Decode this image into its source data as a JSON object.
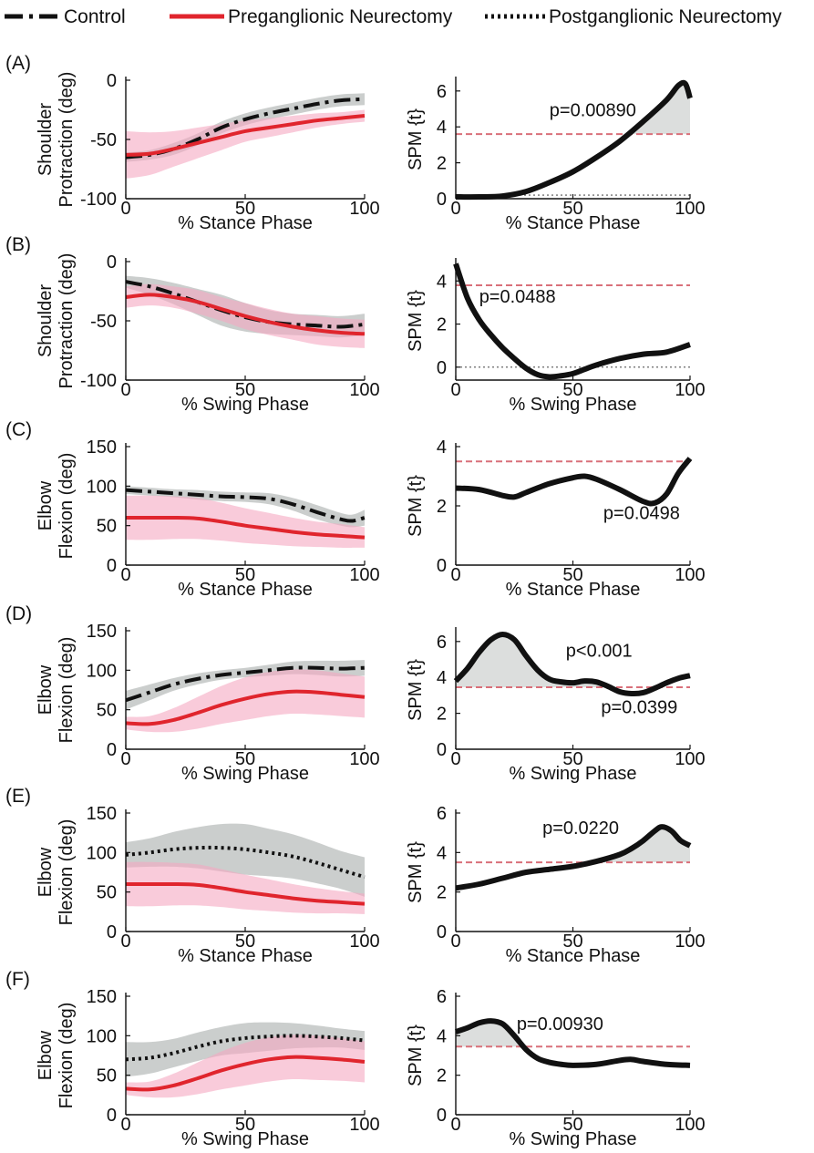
{
  "legend": [
    {
      "label": "Control",
      "style": "dashdot",
      "color": "#111111"
    },
    {
      "label": "Preganglionic Neurectomy",
      "style": "solid",
      "color": "#e0252d"
    },
    {
      "label": "Postganglionic Neurectomy",
      "style": "dotted",
      "color": "#111111"
    }
  ],
  "colors": {
    "line_dark": "#111111",
    "line_red": "#e0252d",
    "band_gray": "#b9bdbc",
    "band_pink": "#f5a9c1",
    "threshold": "#d9707a",
    "spm_fill": "#dcdedd"
  },
  "chart_data": [
    {
      "panel": "(A)",
      "type": "line",
      "side": "kinematics",
      "ylabel": [
        "Shoulder",
        "Protraction (deg)"
      ],
      "xlabel": "% Stance Phase",
      "xlim": [
        0,
        100
      ],
      "ylim": [
        -100,
        0
      ],
      "yticks": [
        0,
        -50,
        -100
      ],
      "xticks": [
        0,
        50,
        100
      ],
      "x": [
        0,
        10,
        20,
        30,
        40,
        50,
        60,
        70,
        80,
        90,
        100
      ],
      "series": [
        {
          "name": "Control",
          "style": "dashdot",
          "color": "#111111",
          "band_color": "#b9bdbc",
          "mean": [
            -65,
            -63,
            -58,
            -50,
            -40,
            -33,
            -28,
            -24,
            -20,
            -17,
            -16
          ],
          "sd": [
            4,
            4,
            5,
            5,
            5,
            5,
            5,
            5,
            5,
            5,
            5
          ]
        },
        {
          "name": "Preganglionic Neurectomy",
          "style": "solid",
          "color": "#e0252d",
          "band_color": "#f5a9c1",
          "mean": [
            -63,
            -62,
            -58,
            -53,
            -48,
            -43,
            -40,
            -37,
            -34,
            -32,
            -30
          ],
          "sd": [
            20,
            18,
            15,
            13,
            11,
            9,
            8,
            7,
            6,
            5,
            5
          ]
        }
      ]
    },
    {
      "panel": "(A)",
      "type": "line",
      "side": "spm",
      "ylabel": "SPM {t}",
      "xlabel": "% Stance Phase",
      "xlim": [
        0,
        100
      ],
      "ylim": [
        0,
        6.6
      ],
      "yticks": [
        0,
        2,
        4,
        6
      ],
      "xticks": [
        0,
        50,
        100
      ],
      "threshold": 3.6,
      "zero_line": 0.2,
      "x": [
        0,
        10,
        20,
        30,
        40,
        50,
        60,
        70,
        80,
        90,
        95,
        98,
        100
      ],
      "values": [
        0.1,
        0.1,
        0.15,
        0.4,
        0.9,
        1.5,
        2.3,
        3.2,
        4.3,
        5.5,
        6.3,
        6.4,
        5.6
      ],
      "cluster_x": [
        73,
        100
      ],
      "annotations": [
        {
          "text": "p=0.00890",
          "x": 40,
          "y": 4.6
        }
      ]
    },
    {
      "panel": "(B)",
      "type": "line",
      "side": "kinematics",
      "ylabel": [
        "Shoulder",
        "Protraction (deg)"
      ],
      "xlabel": "% Swing Phase",
      "xlim": [
        0,
        100
      ],
      "ylim": [
        -100,
        0
      ],
      "yticks": [
        0,
        -50,
        -100
      ],
      "xticks": [
        0,
        50,
        100
      ],
      "x": [
        0,
        10,
        20,
        30,
        40,
        50,
        60,
        70,
        80,
        90,
        100
      ],
      "series": [
        {
          "name": "Control",
          "style": "dashdot",
          "color": "#111111",
          "band_color": "#b9bdbc",
          "mean": [
            -17,
            -21,
            -27,
            -34,
            -41,
            -47,
            -51,
            -53,
            -54,
            -55,
            -53
          ],
          "sd": [
            5,
            7,
            9,
            11,
            13,
            12,
            10,
            9,
            9,
            9,
            9
          ]
        },
        {
          "name": "Preganglionic Neurectomy",
          "style": "solid",
          "color": "#e0252d",
          "band_color": "#f5a9c1",
          "mean": [
            -30,
            -28,
            -30,
            -34,
            -40,
            -46,
            -51,
            -55,
            -58,
            -60,
            -61
          ],
          "sd": [
            9,
            9,
            9,
            10,
            10,
            11,
            11,
            11,
            12,
            12,
            12
          ]
        }
      ]
    },
    {
      "panel": "(B)",
      "type": "line",
      "side": "spm",
      "ylabel": "SPM {t}",
      "xlabel": "% Swing Phase",
      "xlim": [
        0,
        100
      ],
      "ylim": [
        -0.6,
        4.9
      ],
      "yticks": [
        0,
        2,
        4
      ],
      "xticks": [
        0,
        50,
        100
      ],
      "threshold": 3.8,
      "zero_line": 0,
      "x": [
        0,
        5,
        10,
        15,
        20,
        25,
        30,
        35,
        40,
        45,
        50,
        55,
        60,
        70,
        80,
        90,
        100
      ],
      "values": [
        4.8,
        3.2,
        2.2,
        1.5,
        0.9,
        0.4,
        -0.05,
        -0.35,
        -0.45,
        -0.4,
        -0.3,
        -0.1,
        0.1,
        0.4,
        0.6,
        0.7,
        1.05
      ],
      "cluster_x": [
        0,
        3
      ],
      "annotations": [
        {
          "text": "p=0.0488",
          "x": 10,
          "y": 3.0
        }
      ]
    },
    {
      "panel": "(C)",
      "type": "line",
      "side": "kinematics",
      "ylabel": [
        "Elbow",
        "Flexion (deg)"
      ],
      "xlabel": "% Stance Phase",
      "xlim": [
        0,
        100
      ],
      "ylim": [
        0,
        150
      ],
      "yticks": [
        0,
        50,
        100,
        150
      ],
      "xticks": [
        0,
        50,
        100
      ],
      "x": [
        0,
        10,
        20,
        30,
        40,
        50,
        60,
        70,
        80,
        90,
        95,
        100
      ],
      "series": [
        {
          "name": "Control",
          "style": "dashdot",
          "color": "#111111",
          "band_color": "#b9bdbc",
          "mean": [
            95,
            93,
            91,
            89,
            87,
            86,
            84,
            77,
            67,
            58,
            56,
            60
          ],
          "sd": [
            5,
            5,
            5,
            6,
            6,
            6,
            7,
            8,
            9,
            8,
            8,
            10
          ]
        },
        {
          "name": "Preganglionic Neurectomy",
          "style": "solid",
          "color": "#e0252d",
          "band_color": "#f5a9c1",
          "mean": [
            60,
            60,
            60,
            59,
            55,
            50,
            46,
            42,
            39,
            37,
            36,
            35
          ],
          "sd": [
            28,
            28,
            27,
            26,
            24,
            22,
            20,
            18,
            16,
            15,
            14,
            13
          ]
        }
      ]
    },
    {
      "panel": "(C)",
      "type": "line",
      "side": "spm",
      "ylabel": "SPM {t}",
      "xlabel": "% Stance Phase",
      "xlim": [
        0,
        100
      ],
      "ylim": [
        0,
        4
      ],
      "yticks": [
        0,
        2,
        4
      ],
      "xticks": [
        0,
        50,
        100
      ],
      "threshold": 3.5,
      "zero_line": null,
      "x": [
        0,
        10,
        20,
        25,
        30,
        40,
        50,
        55,
        60,
        70,
        80,
        85,
        90,
        95,
        100
      ],
      "values": [
        2.6,
        2.55,
        2.35,
        2.3,
        2.45,
        2.75,
        2.95,
        3.0,
        2.9,
        2.55,
        2.15,
        2.1,
        2.4,
        3.1,
        3.6
      ],
      "cluster_x": [
        99,
        100
      ],
      "annotations": [
        {
          "text": "p=0.0498",
          "x": 63,
          "y": 1.55
        }
      ]
    },
    {
      "panel": "(D)",
      "type": "line",
      "side": "kinematics",
      "ylabel": [
        "Elbow",
        "Flexion (deg)"
      ],
      "xlabel": "% Swing Phase",
      "xlim": [
        0,
        100
      ],
      "ylim": [
        0,
        150
      ],
      "yticks": [
        0,
        50,
        100,
        150
      ],
      "xticks": [
        0,
        50,
        100
      ],
      "x": [
        0,
        10,
        20,
        30,
        40,
        50,
        60,
        70,
        80,
        90,
        100
      ],
      "series": [
        {
          "name": "Control",
          "style": "dashdot",
          "color": "#111111",
          "band_color": "#b9bdbc",
          "mean": [
            62,
            72,
            82,
            89,
            94,
            97,
            100,
            103,
            103,
            102,
            103
          ],
          "sd": [
            12,
            10,
            8,
            7,
            6,
            6,
            7,
            8,
            9,
            10,
            10
          ]
        },
        {
          "name": "Preganglionic Neurectomy",
          "style": "solid",
          "color": "#e0252d",
          "band_color": "#f5a9c1",
          "mean": [
            33,
            32,
            37,
            46,
            56,
            64,
            70,
            73,
            72,
            69,
            66
          ],
          "sd": [
            8,
            10,
            15,
            20,
            24,
            27,
            28,
            28,
            28,
            27,
            26
          ]
        }
      ]
    },
    {
      "panel": "(D)",
      "type": "line",
      "side": "spm",
      "ylabel": "SPM {t}",
      "xlabel": "% Swing Phase",
      "xlim": [
        0,
        100
      ],
      "ylim": [
        0,
        6.6
      ],
      "yticks": [
        0,
        2,
        4,
        6
      ],
      "xticks": [
        0,
        50,
        100
      ],
      "threshold": 3.45,
      "zero_line": null,
      "x": [
        0,
        5,
        10,
        15,
        20,
        25,
        30,
        35,
        40,
        45,
        50,
        55,
        60,
        65,
        70,
        75,
        80,
        85,
        90,
        95,
        100
      ],
      "values": [
        3.8,
        4.5,
        5.4,
        6.1,
        6.4,
        6.1,
        5.2,
        4.4,
        3.9,
        3.75,
        3.7,
        3.8,
        3.75,
        3.5,
        3.2,
        3.1,
        3.15,
        3.4,
        3.7,
        3.95,
        4.1
      ],
      "cluster_x": [
        0,
        62
      ],
      "annotations": [
        {
          "text": "p<0.001",
          "x": 47,
          "y": 5.15
        },
        {
          "text": "p=0.0399",
          "x": 62,
          "y": 2.0
        }
      ]
    },
    {
      "panel": "(E)",
      "type": "line",
      "side": "kinematics",
      "ylabel": [
        "Elbow",
        "Flexion (deg)"
      ],
      "xlabel": "% Stance Phase",
      "xlim": [
        0,
        100
      ],
      "ylim": [
        0,
        150
      ],
      "yticks": [
        0,
        50,
        100,
        150
      ],
      "xticks": [
        0,
        50,
        100
      ],
      "x": [
        0,
        10,
        20,
        30,
        40,
        50,
        60,
        70,
        80,
        90,
        100
      ],
      "series": [
        {
          "name": "Postganglionic Neurectomy",
          "style": "dotted",
          "color": "#111111",
          "band_color": "#b9bdbc",
          "mean": [
            97,
            100,
            104,
            106,
            106,
            104,
            100,
            95,
            87,
            78,
            69
          ],
          "sd": [
            16,
            18,
            22,
            26,
            30,
            32,
            30,
            28,
            26,
            24,
            25
          ]
        },
        {
          "name": "Preganglionic Neurectomy",
          "style": "solid",
          "color": "#e0252d",
          "band_color": "#f5a9c1",
          "mean": [
            60,
            60,
            60,
            59,
            55,
            50,
            46,
            42,
            39,
            37,
            35
          ],
          "sd": [
            28,
            28,
            27,
            26,
            24,
            22,
            20,
            18,
            16,
            14,
            13
          ]
        }
      ]
    },
    {
      "panel": "(E)",
      "type": "line",
      "side": "spm",
      "ylabel": "SPM {t}",
      "xlabel": "% Stance Phase",
      "xlim": [
        0,
        100
      ],
      "ylim": [
        0,
        6
      ],
      "yticks": [
        0,
        2,
        4,
        6
      ],
      "xticks": [
        0,
        50,
        100
      ],
      "threshold": 3.5,
      "zero_line": null,
      "x": [
        0,
        10,
        20,
        30,
        40,
        50,
        60,
        70,
        75,
        80,
        85,
        88,
        92,
        96,
        100
      ],
      "values": [
        2.2,
        2.4,
        2.7,
        3.0,
        3.15,
        3.3,
        3.55,
        3.9,
        4.2,
        4.6,
        5.1,
        5.3,
        5.1,
        4.6,
        4.35
      ],
      "cluster_x": [
        56,
        100
      ],
      "annotations": [
        {
          "text": "p=0.0220",
          "x": 37,
          "y": 4.95
        }
      ]
    },
    {
      "panel": "(F)",
      "type": "line",
      "side": "kinematics",
      "ylabel": [
        "Elbow",
        "Flexion (deg)"
      ],
      "xlabel": "% Swing Phase",
      "xlim": [
        0,
        100
      ],
      "ylim": [
        0,
        150
      ],
      "yticks": [
        0,
        50,
        100,
        150
      ],
      "xticks": [
        0,
        50,
        100
      ],
      "x": [
        0,
        10,
        20,
        30,
        40,
        50,
        60,
        70,
        80,
        90,
        100
      ],
      "series": [
        {
          "name": "Postganglionic Neurectomy",
          "style": "dotted",
          "color": "#111111",
          "band_color": "#b9bdbc",
          "mean": [
            70,
            72,
            78,
            86,
            93,
            97,
            99,
            100,
            99,
            97,
            94
          ],
          "sd": [
            22,
            20,
            18,
            18,
            18,
            19,
            18,
            16,
            14,
            12,
            12
          ]
        },
        {
          "name": "Preganglionic Neurectomy",
          "style": "solid",
          "color": "#e0252d",
          "band_color": "#f5a9c1",
          "mean": [
            33,
            32,
            37,
            46,
            56,
            64,
            70,
            73,
            72,
            70,
            67
          ],
          "sd": [
            8,
            10,
            15,
            20,
            24,
            27,
            28,
            28,
            28,
            27,
            26
          ]
        }
      ]
    },
    {
      "panel": "(F)",
      "type": "line",
      "side": "spm",
      "ylabel": "SPM {t}",
      "xlabel": "% Swing Phase",
      "xlim": [
        0,
        100
      ],
      "ylim": [
        0,
        6
      ],
      "yticks": [
        0,
        2,
        4,
        6
      ],
      "xticks": [
        0,
        50,
        100
      ],
      "threshold": 3.45,
      "zero_line": null,
      "x": [
        0,
        5,
        10,
        15,
        20,
        25,
        30,
        35,
        40,
        45,
        50,
        60,
        70,
        75,
        80,
        90,
        100
      ],
      "values": [
        4.2,
        4.4,
        4.65,
        4.75,
        4.6,
        4.0,
        3.3,
        2.85,
        2.65,
        2.55,
        2.5,
        2.55,
        2.75,
        2.8,
        2.7,
        2.55,
        2.5
      ],
      "cluster_x": [
        0,
        30
      ],
      "annotations": [
        {
          "text": "p=0.00930",
          "x": 26,
          "y": 4.3
        }
      ]
    }
  ]
}
